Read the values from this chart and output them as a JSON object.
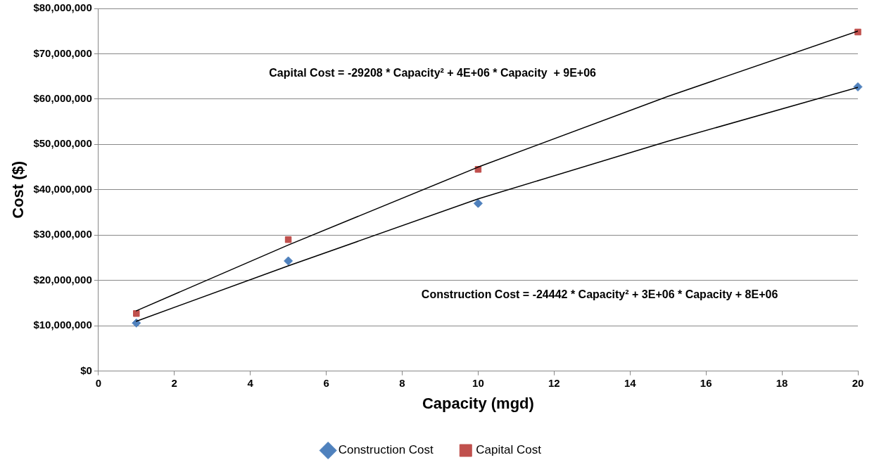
{
  "chart_data": {
    "type": "scatter",
    "xlabel": "Capacity (mgd)",
    "ylabel": "Cost ($)",
    "xlim": [
      0,
      20
    ],
    "xticks": [
      0,
      2,
      4,
      6,
      8,
      10,
      12,
      14,
      16,
      18,
      20
    ],
    "ylim": [
      0,
      80000000
    ],
    "yticks": [
      {
        "value": 0,
        "label": "$0"
      },
      {
        "value": 10000000,
        "label": "$10,000,000"
      },
      {
        "value": 20000000,
        "label": "$20,000,000"
      },
      {
        "value": 30000000,
        "label": "$30,000,000"
      },
      {
        "value": 40000000,
        "label": "$40,000,000"
      },
      {
        "value": 50000000,
        "label": "$50,000,000"
      },
      {
        "value": 60000000,
        "label": "$60,000,000"
      },
      {
        "value": 70000000,
        "label": "$70,000,000"
      },
      {
        "value": 80000000,
        "label": "$80,000,000"
      }
    ],
    "grid": "y",
    "legend": "bottom",
    "series": [
      {
        "name": "Construction Cost",
        "marker": "diamond",
        "color": "#4f81bd",
        "x": [
          1,
          5,
          10,
          20
        ],
        "values": [
          10600000,
          24300000,
          37000000,
          62700000
        ]
      },
      {
        "name": "Capital Cost",
        "marker": "square",
        "color": "#c0504d",
        "x": [
          1,
          5,
          10,
          20
        ],
        "values": [
          12700000,
          29000000,
          44500000,
          74800000
        ]
      },
      {
        "type": "line",
        "marker": "none",
        "color": "#000000",
        "x": [
          1,
          5,
          10,
          15,
          20
        ],
        "values": [
          11000000,
          23200000,
          38000000,
          50700000,
          62600000
        ]
      },
      {
        "type": "line",
        "marker": "none",
        "color": "#000000",
        "x": [
          1,
          5,
          10,
          15,
          20
        ],
        "values": [
          13300000,
          27800000,
          45000000,
          60600000,
          75000000
        ]
      }
    ],
    "annotations": [
      "Capital Cost = -29208 * Capacity² + 4E+06 * Capacity  + 9E+06",
      "Construction Cost = -24442 * Capacity² + 3E+06 * Capacity + 8E+06"
    ]
  }
}
